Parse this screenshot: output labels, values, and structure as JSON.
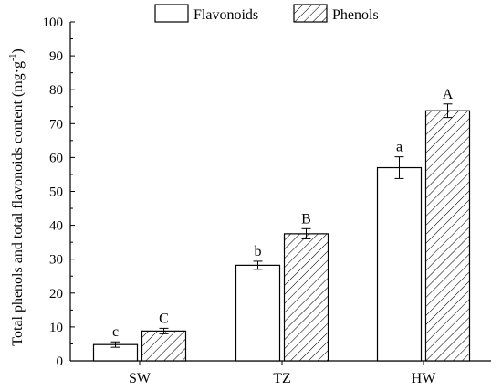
{
  "chart_data": {
    "type": "bar",
    "categories": [
      "SW",
      "TZ",
      "HW"
    ],
    "series": [
      {
        "name": "Flavonoids",
        "values": [
          4.8,
          28.2,
          57.0
        ],
        "errors": [
          0.8,
          1.2,
          3.2
        ],
        "labels": [
          "c",
          "b",
          "a"
        ],
        "pattern": "open"
      },
      {
        "name": "Phenols",
        "values": [
          8.8,
          37.5,
          73.8
        ],
        "errors": [
          0.8,
          1.5,
          2.0
        ],
        "labels": [
          "C",
          "B",
          "A"
        ],
        "pattern": "hatched"
      }
    ],
    "ylabel": "Total phenols and total flavonoids content (mg·g",
    "ylabel_sup": "-1",
    "ylabel_close": ")",
    "ylim": [
      0,
      100
    ],
    "yticks": [
      "0",
      "10",
      "20",
      "30",
      "40",
      "50",
      "60",
      "70",
      "80",
      "90",
      "100"
    ],
    "legend_position": "top-center",
    "grid": false,
    "colors": {
      "bar_fill": "#ffffff",
      "stroke": "#000000",
      "hatch": "#000000"
    }
  }
}
